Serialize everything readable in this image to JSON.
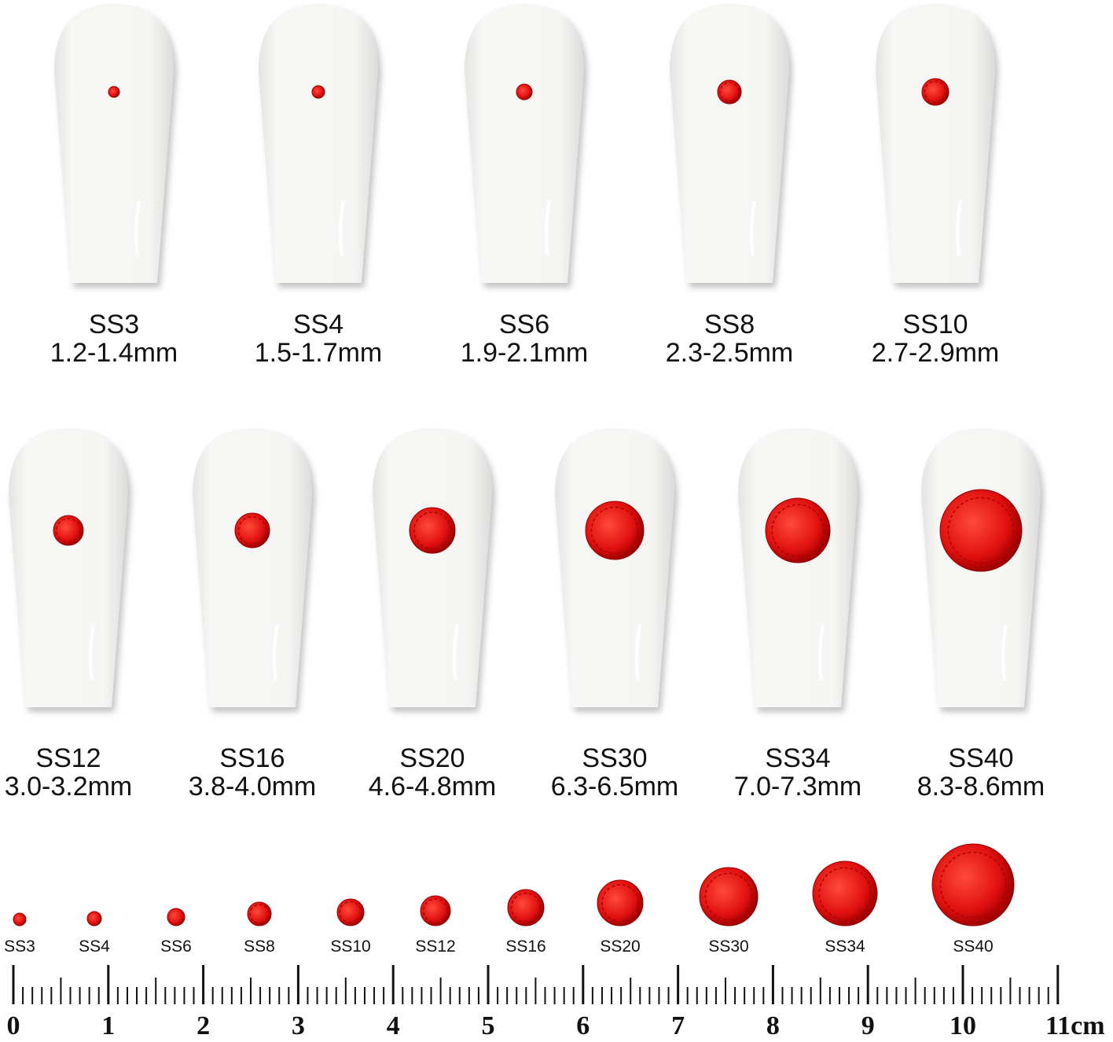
{
  "nails_row1": [
    {
      "code": "SS3",
      "size": "1.2-1.4mm"
    },
    {
      "code": "SS4",
      "size": "1.5-1.7mm"
    },
    {
      "code": "SS6",
      "size": "1.9-2.1mm"
    },
    {
      "code": "SS8",
      "size": "2.3-2.5mm"
    },
    {
      "code": "SS10",
      "size": "2.7-2.9mm"
    }
  ],
  "nails_row2": [
    {
      "code": "SS12",
      "size": "3.0-3.2mm"
    },
    {
      "code": "SS16",
      "size": "3.8-4.0mm"
    },
    {
      "code": "SS20",
      "size": "4.6-4.8mm"
    },
    {
      "code": "SS30",
      "size": "6.3-6.5mm"
    },
    {
      "code": "SS34",
      "size": "7.0-7.3mm"
    },
    {
      "code": "SS40",
      "size": "8.3-8.6mm"
    }
  ],
  "gems": [
    "SS3",
    "SS4",
    "SS6",
    "SS8",
    "SS10",
    "SS12",
    "SS16",
    "SS20",
    "SS30",
    "SS34",
    "SS40"
  ],
  "ruler": {
    "labels": [
      "0",
      "1",
      "2",
      "3",
      "4",
      "5",
      "6",
      "7",
      "8",
      "9",
      "10",
      "11cm"
    ]
  }
}
